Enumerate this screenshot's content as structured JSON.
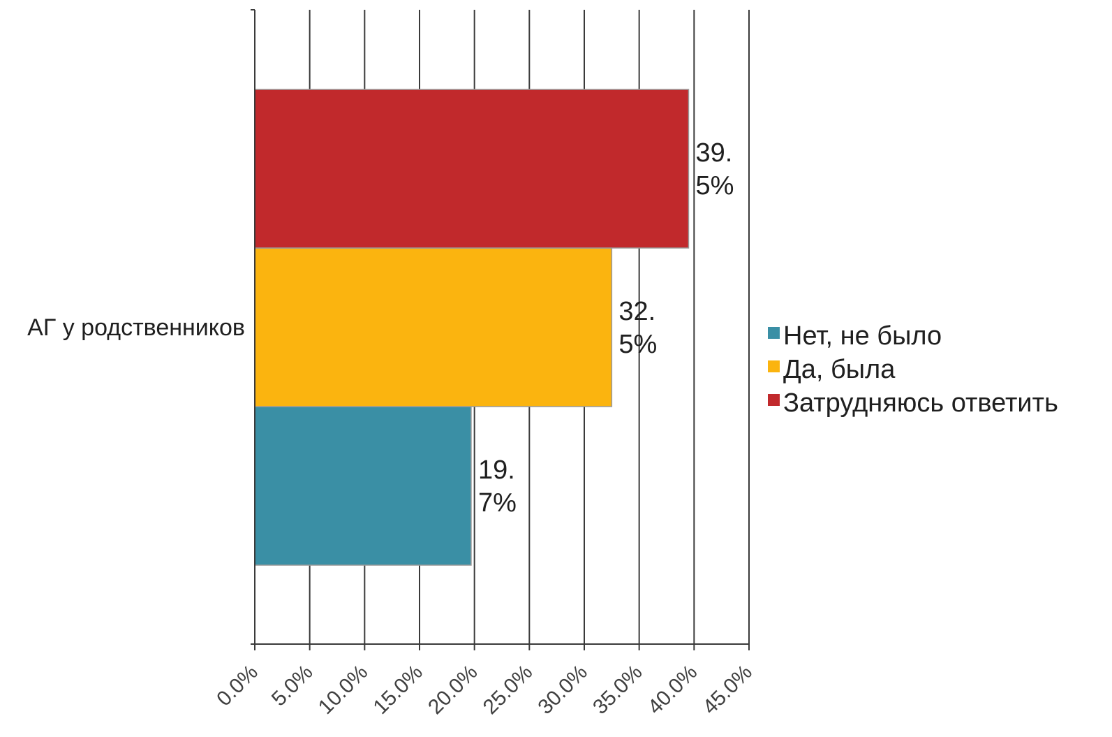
{
  "chart_data": {
    "type": "bar",
    "orientation": "horizontal",
    "categories": [
      "АГ у родственников"
    ],
    "series": [
      {
        "name": "Нет, не было",
        "values": [
          19.7
        ],
        "label_lines": [
          "19.",
          "7%"
        ],
        "color": "#3A8FA5"
      },
      {
        "name": "Да, была",
        "values": [
          32.5
        ],
        "label_lines": [
          "32.",
          "5%"
        ],
        "color": "#FBB40F"
      },
      {
        "name": "Затрудняюсь ответить",
        "values": [
          39.5
        ],
        "label_lines": [
          "39.",
          "5%"
        ],
        "color": "#C1292C"
      }
    ],
    "xticks": [
      "0.0%",
      "5.0%",
      "10.0%",
      "15.0%",
      "20.0%",
      "25.0%",
      "30.0%",
      "35.0%",
      "40.0%",
      "45.0%"
    ],
    "xlim": [
      0,
      45
    ],
    "grid": "vertical",
    "legend": {
      "position": "right"
    },
    "title": "",
    "xlabel": "",
    "ylabel": ""
  }
}
